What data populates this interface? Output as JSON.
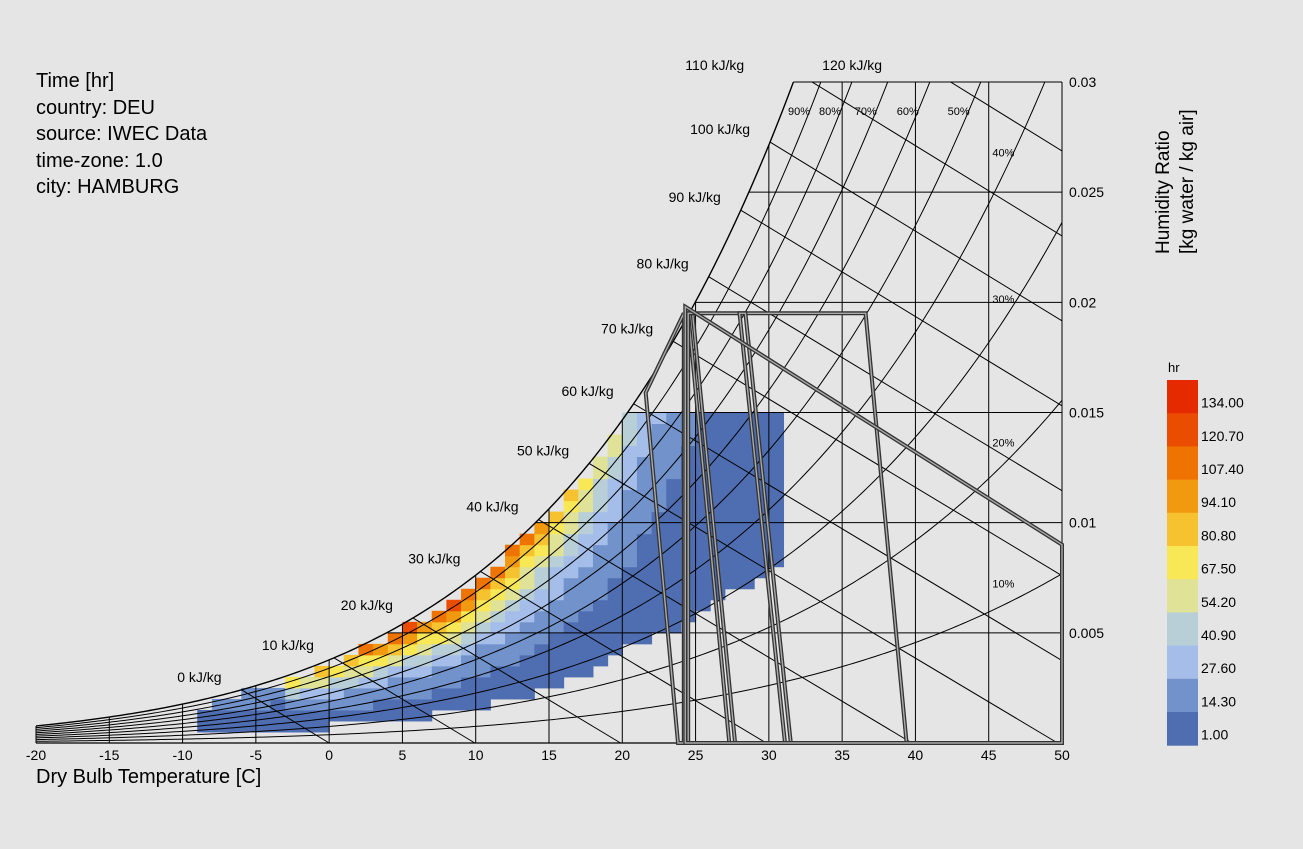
{
  "info_lines": [
    "Time [hr]",
    "country: DEU",
    "source: IWEC Data",
    "time-zone: 1.0",
    "city: HAMBURG"
  ],
  "chart_data": {
    "type": "heatmap",
    "chart_kind": "psychrometric chart",
    "xlabel": "Dry Bulb Temperature [C]",
    "ylabel_lines": [
      "Humidity Ratio",
      "[kg water / kg air]"
    ],
    "x_ticks": [
      -20,
      -15,
      -10,
      -5,
      0,
      5,
      10,
      15,
      20,
      25,
      30,
      35,
      40,
      45,
      50
    ],
    "y_ticks": [
      0.005,
      0.01,
      0.015,
      0.02,
      0.025,
      0.03
    ],
    "y_tick_labels": [
      "0.005",
      "0.01",
      "0.015",
      "0.02",
      "0.025",
      "0.03"
    ],
    "xlim": [
      -20,
      50
    ],
    "ylim": [
      0,
      0.03
    ],
    "enthalpy_lines": [
      {
        "value": 0,
        "label": "0 kJ/kg"
      },
      {
        "value": 10,
        "label": "10 kJ/kg"
      },
      {
        "value": 20,
        "label": "20 kJ/kg"
      },
      {
        "value": 30,
        "label": "30 kJ/kg"
      },
      {
        "value": 40,
        "label": "40 kJ/kg"
      },
      {
        "value": 50,
        "label": "50 kJ/kg"
      },
      {
        "value": 60,
        "label": "60 kJ/kg"
      },
      {
        "value": 70,
        "label": "70 kJ/kg"
      },
      {
        "value": 80,
        "label": "80 kJ/kg"
      },
      {
        "value": 90,
        "label": "90 kJ/kg"
      },
      {
        "value": 100,
        "label": "100 kJ/kg"
      },
      {
        "value": 110,
        "label": "110 kJ/kg"
      },
      {
        "value": 120,
        "label": "120 kJ/kg"
      }
    ],
    "rh_lines": [
      {
        "value": 10,
        "label": "10%"
      },
      {
        "value": 20,
        "label": "20%"
      },
      {
        "value": 30,
        "label": "30%"
      },
      {
        "value": 40,
        "label": "40%"
      },
      {
        "value": 50,
        "label": "50%"
      },
      {
        "value": 60,
        "label": "60%"
      },
      {
        "value": 70,
        "label": "70%"
      },
      {
        "value": 80,
        "label": "80%"
      },
      {
        "value": 90,
        "label": "90%"
      },
      {
        "value": 100,
        "label": ""
      }
    ],
    "legend": {
      "title": "hr",
      "labels": [
        "134.00",
        "120.70",
        "107.40",
        "94.10",
        "80.80",
        "67.50",
        "54.20",
        "40.90",
        "27.60",
        "14.30",
        "1.00"
      ],
      "colors": [
        "#e52a00",
        "#ea4d00",
        "#ee7300",
        "#f19a10",
        "#f6c22f",
        "#f8e855",
        "#e0e297",
        "#b9cfd8",
        "#a4bde9",
        "#7192cb",
        "#4f6eb1"
      ]
    },
    "comfort_polygons": [
      [
        [
          24.2,
          0.0195
        ],
        [
          21.6,
          0.0159
        ],
        [
          23.8,
          0
        ],
        [
          24.2,
          0
        ]
      ],
      [
        [
          24.5,
          0.0195
        ],
        [
          27.3,
          0
        ],
        [
          27.7,
          0
        ],
        [
          24.8,
          0.0195
        ]
      ],
      [
        [
          24.5,
          0.0195
        ],
        [
          36.6,
          0.0195
        ],
        [
          39.4,
          0
        ],
        [
          24.5,
          0
        ]
      ],
      [
        [
          28.0,
          0.0195
        ],
        [
          31.1,
          0
        ],
        [
          31.5,
          0
        ],
        [
          28.4,
          0.0195
        ]
      ],
      [
        [
          24.3,
          0.0198
        ],
        [
          24.3,
          0.0198
        ],
        [
          50,
          0.009
        ],
        [
          50,
          0
        ],
        [
          24.3,
          0
        ]
      ]
    ],
    "hours_cells": [
      [
        0,
        4,
        11
      ],
      [
        0,
        5,
        18
      ],
      [
        1,
        4,
        24
      ],
      [
        1,
        5,
        40
      ],
      [
        1,
        6,
        30
      ],
      [
        2,
        5,
        70
      ],
      [
        2,
        6,
        100
      ],
      [
        3,
        6,
        130
      ],
      [
        3,
        7,
        120
      ],
      [
        4,
        6,
        90
      ],
      [
        4,
        7,
        85
      ],
      [
        4,
        8,
        60
      ],
      [
        5,
        7,
        110
      ],
      [
        5,
        8,
        90
      ],
      [
        6,
        8,
        100
      ],
      [
        6,
        9,
        90
      ],
      [
        7,
        8,
        80
      ],
      [
        7,
        9,
        110
      ],
      [
        8,
        9,
        100
      ],
      [
        8,
        10,
        110
      ],
      [
        9,
        10,
        90
      ],
      [
        9,
        11,
        95
      ],
      [
        10,
        11,
        85
      ],
      [
        10,
        12,
        80
      ],
      [
        11,
        12,
        100
      ],
      [
        11,
        13,
        110
      ],
      [
        12,
        13,
        100
      ],
      [
        12,
        14,
        85
      ],
      [
        13,
        14,
        95
      ],
      [
        13,
        15,
        70
      ],
      [
        14,
        15,
        60
      ],
      [
        14,
        16,
        55
      ],
      [
        15,
        16,
        45
      ],
      [
        15,
        17,
        40
      ],
      [
        16,
        17,
        35
      ],
      [
        16,
        18,
        30
      ],
      [
        17,
        18,
        25
      ],
      [
        17,
        19,
        22
      ],
      [
        18,
        19,
        20
      ],
      [
        18,
        20,
        15
      ],
      [
        19,
        20,
        12
      ],
      [
        19,
        21,
        10
      ],
      [
        20,
        22,
        8
      ],
      [
        21,
        23,
        5
      ],
      [
        22,
        24,
        4
      ],
      [
        23,
        26,
        3
      ],
      [
        24,
        28,
        2
      ],
      [
        26,
        30,
        2
      ],
      [
        28,
        32,
        1
      ]
    ]
  }
}
